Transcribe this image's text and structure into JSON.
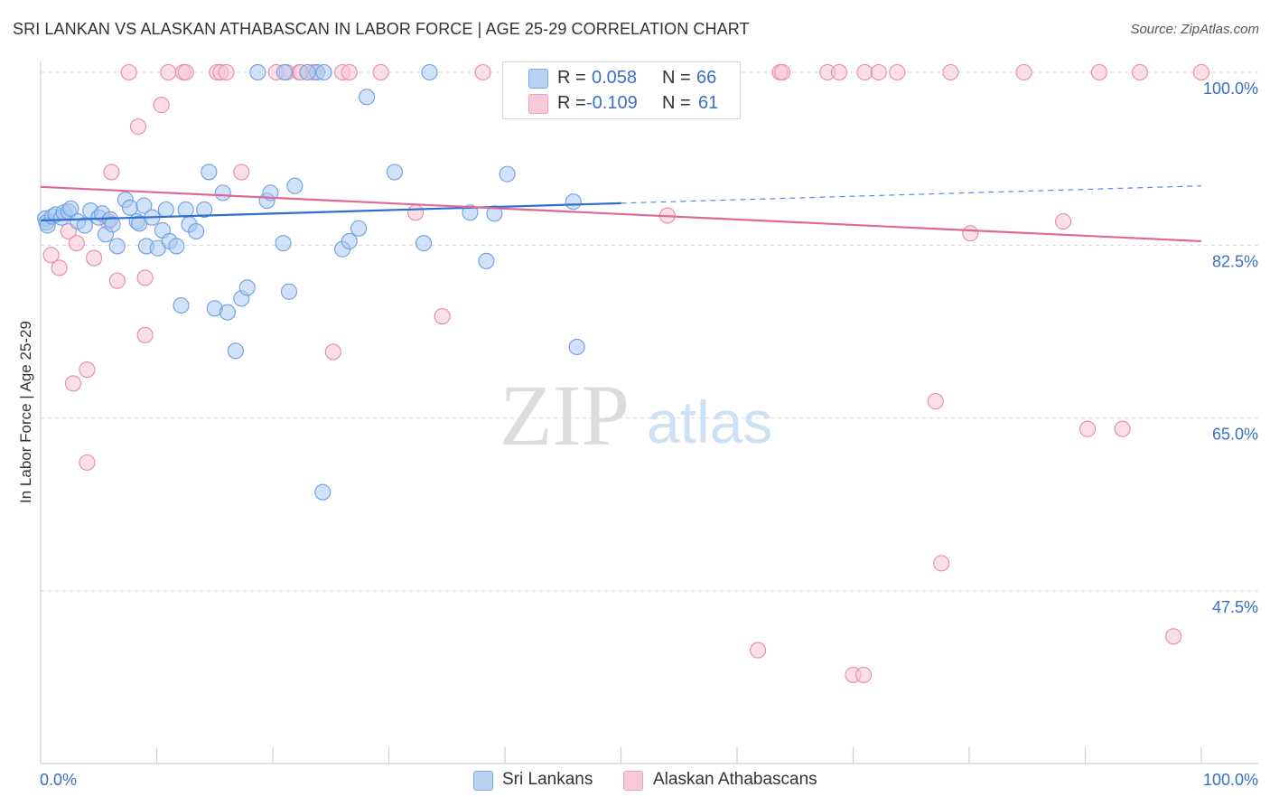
{
  "title": "SRI LANKAN VS ALASKAN ATHABASCAN IN LABOR FORCE | AGE 25-29 CORRELATION CHART",
  "source": "Source: ZipAtlas.com",
  "watermark": {
    "zip": "ZIP",
    "atlas": "atlas"
  },
  "colors": {
    "blue_fill": "#a9c8f2",
    "blue_stroke": "#6f9fe0",
    "blue_line": "#2f6fd1",
    "pink_fill": "#f6c4d4",
    "pink_stroke": "#ea8aaa",
    "pink_line": "#e0679a",
    "grid": "#d9d9d9",
    "axis_text": "#3a6fc9"
  },
  "legend_top": {
    "rows": [
      {
        "r_label": "R = ",
        "r_value": "0.058",
        "n_label": "N = ",
        "n_value": "66"
      },
      {
        "r_label": "R = ",
        "r_value": "-0.109",
        "n_label": "N = ",
        "n_value": "61"
      }
    ]
  },
  "chart_data": {
    "type": "scatter",
    "title": "SRI LANKAN VS ALASKAN ATHABASCAN IN LABOR FORCE | AGE 25-29 CORRELATION CHART",
    "xlabel": "",
    "ylabel": "In Labor Force | Age 25-29",
    "xlim": [
      0,
      100
    ],
    "ylim": [
      29,
      101.5
    ],
    "x_tick_labels": [
      "0.0%",
      "100.0%"
    ],
    "y_ticks": [
      47.5,
      65.0,
      82.5,
      100.0
    ],
    "y_tick_labels": [
      "47.5%",
      "65.0%",
      "82.5%",
      "100.0%"
    ],
    "legend": [
      "Sri Lankans",
      "Alaskan Athabascans"
    ],
    "series": [
      {
        "name": "Sri Lankans",
        "r": 0.058,
        "n": 66,
        "trend": {
          "x0": 0,
          "y0": 85.0,
          "x1": 100,
          "y1": 88.5,
          "solid_until": 50
        },
        "points": [
          [
            0.4,
            85.2
          ],
          [
            0.5,
            84.8
          ],
          [
            0.6,
            84.5
          ],
          [
            1.0,
            85.4
          ],
          [
            1.3,
            85.6
          ],
          [
            1.8,
            85.3
          ],
          [
            2.0,
            85.8
          ],
          [
            2.4,
            85.9
          ],
          [
            2.6,
            86.2
          ],
          [
            3.2,
            84.9
          ],
          [
            3.8,
            84.5
          ],
          [
            4.3,
            86.0
          ],
          [
            5.0,
            85.3
          ],
          [
            5.3,
            85.7
          ],
          [
            5.6,
            83.6
          ],
          [
            6.0,
            85.1
          ],
          [
            6.2,
            84.6
          ],
          [
            6.6,
            82.4
          ],
          [
            7.3,
            87.1
          ],
          [
            7.7,
            86.3
          ],
          [
            8.3,
            84.9
          ],
          [
            8.5,
            84.7
          ],
          [
            8.9,
            86.5
          ],
          [
            9.1,
            82.4
          ],
          [
            9.6,
            85.3
          ],
          [
            10.1,
            82.2
          ],
          [
            10.5,
            84.0
          ],
          [
            10.8,
            86.1
          ],
          [
            11.1,
            82.9
          ],
          [
            11.7,
            82.4
          ],
          [
            12.1,
            76.4
          ],
          [
            12.5,
            86.1
          ],
          [
            12.8,
            84.6
          ],
          [
            13.4,
            83.9
          ],
          [
            14.1,
            86.1
          ],
          [
            14.5,
            89.9
          ],
          [
            15.0,
            76.1
          ],
          [
            15.7,
            87.8
          ],
          [
            16.1,
            75.7
          ],
          [
            16.8,
            71.8
          ],
          [
            17.3,
            77.1
          ],
          [
            17.8,
            78.2
          ],
          [
            18.7,
            100.0
          ],
          [
            19.5,
            87.0
          ],
          [
            19.8,
            87.8
          ],
          [
            20.9,
            82.7
          ],
          [
            21.4,
            77.8
          ],
          [
            21.9,
            88.5
          ],
          [
            23.8,
            100.0
          ],
          [
            24.4,
            100.0
          ],
          [
            24.3,
            57.5
          ],
          [
            26.0,
            82.1
          ],
          [
            26.6,
            82.9
          ],
          [
            27.4,
            84.2
          ],
          [
            28.1,
            97.5
          ],
          [
            30.5,
            89.9
          ],
          [
            33.0,
            82.7
          ],
          [
            33.5,
            100.0
          ],
          [
            37.0,
            85.8
          ],
          [
            38.4,
            80.9
          ],
          [
            39.1,
            85.7
          ],
          [
            40.2,
            89.7
          ],
          [
            45.9,
            86.9
          ],
          [
            46.2,
            72.2
          ],
          [
            23.0,
            100.0
          ],
          [
            21.0,
            100.0
          ]
        ]
      },
      {
        "name": "Alaskan Athabascans",
        "r": -0.109,
        "n": 61,
        "trend": {
          "x0": 0,
          "y0": 88.4,
          "x1": 100,
          "y1": 82.9
        },
        "points": [
          [
            0.9,
            81.5
          ],
          [
            1.6,
            80.2
          ],
          [
            2.4,
            83.9
          ],
          [
            2.8,
            68.5
          ],
          [
            3.1,
            82.7
          ],
          [
            4.0,
            69.9
          ],
          [
            4.0,
            60.5
          ],
          [
            4.6,
            81.2
          ],
          [
            5.8,
            84.9
          ],
          [
            6.1,
            89.9
          ],
          [
            6.6,
            78.9
          ],
          [
            8.4,
            94.5
          ],
          [
            9.0,
            73.4
          ],
          [
            9.0,
            79.2
          ],
          [
            10.4,
            96.7
          ],
          [
            11.0,
            100.0
          ],
          [
            12.3,
            100.0
          ],
          [
            15.2,
            100.0
          ],
          [
            15.5,
            100.0
          ],
          [
            16.0,
            100.0
          ],
          [
            17.3,
            89.9
          ],
          [
            20.3,
            100.0
          ],
          [
            21.2,
            100.0
          ],
          [
            22.3,
            100.0
          ],
          [
            22.4,
            100.0
          ],
          [
            25.2,
            71.7
          ],
          [
            26.0,
            100.0
          ],
          [
            26.6,
            100.0
          ],
          [
            29.3,
            100.0
          ],
          [
            32.3,
            85.8
          ],
          [
            34.6,
            75.3
          ],
          [
            38.1,
            100.0
          ],
          [
            48.2,
            100.0
          ],
          [
            52.2,
            100.0
          ],
          [
            54.0,
            85.5
          ],
          [
            56.0,
            100.0
          ],
          [
            61.8,
            41.5
          ],
          [
            63.7,
            100.0
          ],
          [
            63.9,
            100.0
          ],
          [
            67.8,
            100.0
          ],
          [
            68.8,
            100.0
          ],
          [
            70.0,
            39.0
          ],
          [
            70.9,
            39.0
          ],
          [
            71.0,
            100.0
          ],
          [
            72.2,
            100.0
          ],
          [
            73.8,
            100.0
          ],
          [
            77.1,
            66.7
          ],
          [
            77.6,
            50.3
          ],
          [
            78.4,
            100.0
          ],
          [
            80.1,
            83.7
          ],
          [
            84.7,
            100.0
          ],
          [
            88.1,
            84.9
          ],
          [
            90.2,
            63.9
          ],
          [
            91.2,
            100.0
          ],
          [
            93.2,
            63.9
          ],
          [
            94.7,
            100.0
          ],
          [
            97.6,
            42.9
          ],
          [
            100.0,
            100.0
          ],
          [
            12.5,
            100.0
          ],
          [
            7.6,
            100.0
          ],
          [
            23.5,
            100.0
          ]
        ]
      }
    ]
  }
}
